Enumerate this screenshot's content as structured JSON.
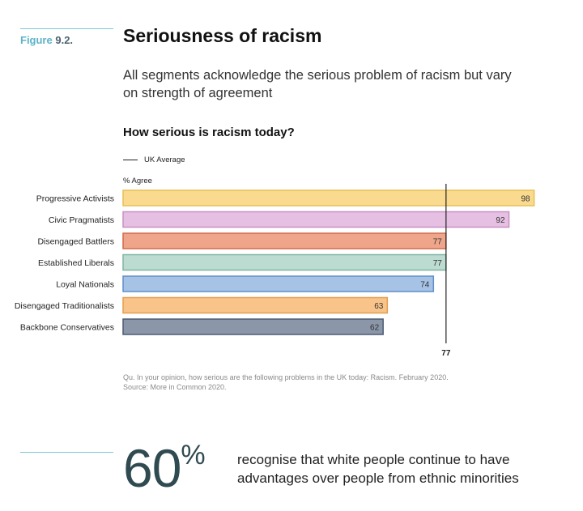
{
  "figure": {
    "label_prefix": "Figure",
    "label_number": "9.2."
  },
  "title": "Seriousness of racism",
  "subtitle": "All segments acknowledge the serious problem of racism but vary on strength of agreement",
  "question": "How serious is racism today?",
  "legend": {
    "average_label": "UK Average"
  },
  "unit_label": "% Agree",
  "colors": {
    "progressive_activists": "#f9da8e",
    "civic_pragmatists": "#e6c0e2",
    "disengaged_battlers": "#efa58a",
    "established_liberals": "#bcdcd2",
    "loyal_nationals": "#a6c3e6",
    "disengaged_traditionalists": "#f8c48a",
    "backbone_conservatives": "#8b96a8"
  },
  "chart_data": {
    "type": "bar",
    "orientation": "horizontal",
    "categories": [
      "Progressive Activists",
      "Civic Pragmatists",
      "Disengaged Battlers",
      "Established Liberals",
      "Loyal Nationals",
      "Disengaged Traditionalists",
      "Backbone Conservatives"
    ],
    "values": [
      98,
      92,
      77,
      77,
      74,
      63,
      62
    ],
    "colors": [
      "#f9da8e",
      "#e6c0e2",
      "#efa58a",
      "#bcdcd2",
      "#a6c3e6",
      "#f8c48a",
      "#8b96a8"
    ],
    "border_colors": [
      "#e9bf55",
      "#c98fc3",
      "#d26a4a",
      "#7fb4a3",
      "#5f8fc8",
      "#e49d4e",
      "#4c5b73"
    ],
    "reference_line": {
      "label": "UK Average",
      "value": 77
    },
    "xlim": [
      0,
      100
    ],
    "ylabel": "% Agree"
  },
  "source": {
    "question_note": "Qu. In your opinion, how serious are the following problems in the UK today: Racism. February 2020.",
    "source_note": "Source: More in Common 2020."
  },
  "stat": {
    "value": "60",
    "unit": "%",
    "text": "recognise that white people continue to have advantages over people from ethnic minorities"
  }
}
